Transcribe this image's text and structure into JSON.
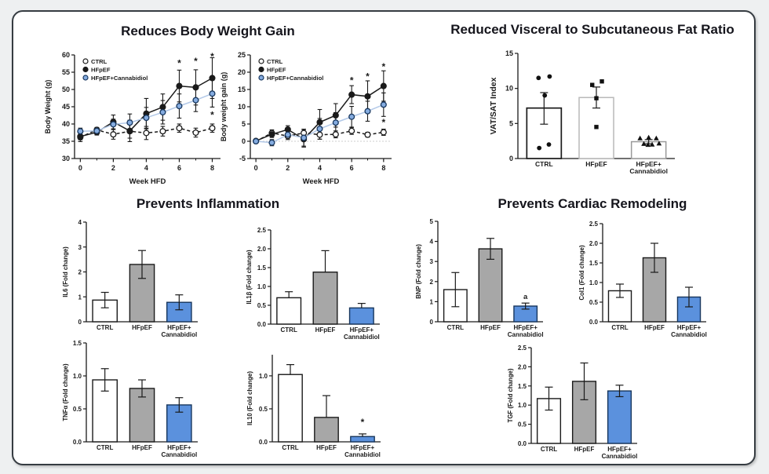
{
  "palette": {
    "background": "#eef0f1",
    "card_border": "#363c42",
    "axis": "#1a1a1a",
    "gray_bar": "#a7a7a7",
    "blue_bar": "#5b91dd",
    "blue_line": "#b3c9e8",
    "blue_marker": "#85ace0",
    "blue_edge": "#17365d"
  },
  "sections": {
    "top_left_title": "Reduces Body Weight Gain",
    "top_right_title": "Reduced Visceral to Subcutaneous Fat Ratio",
    "bottom_left_title": "Prevents Inflammation",
    "bottom_right_title": "Prevents Cardiac Remodeling"
  },
  "chart_data": [
    {
      "id": "body_weight",
      "type": "line",
      "show_legend": true,
      "xlabel": "Week HFD",
      "ylabel": "Body Weight (g)",
      "xlim": [
        -0.35,
        8.5
      ],
      "ylim": [
        30,
        60
      ],
      "ydec": 0,
      "yticks": [
        30,
        35,
        40,
        45,
        50,
        55,
        60
      ],
      "xticks": [
        0,
        2,
        4,
        6,
        8
      ],
      "xminor": [
        1,
        3,
        5,
        7
      ],
      "x": [
        0,
        1,
        2,
        3,
        4,
        5,
        6,
        7,
        8
      ],
      "series": [
        {
          "name": "CTRL",
          "line_style": "dashed",
          "line_color": "#1a1a1a",
          "marker_fill": "#ffffff",
          "marker_edge": "#1a1a1a",
          "values": [
            36.2,
            38.3,
            37.0,
            37.9,
            37.4,
            37.9,
            38.8,
            37.5,
            38.8
          ],
          "err": [
            1.3,
            0.7,
            1.4,
            2.0,
            1.9,
            1.4,
            1.2,
            1.3,
            1.2
          ]
        },
        {
          "name": "HFpEF",
          "line_style": "solid",
          "line_color": "#1a1a1a",
          "marker_fill": "#1a1a1a",
          "marker_edge": "#1a1a1a",
          "values": [
            36.4,
            37.6,
            40.6,
            38.0,
            43.0,
            44.9,
            51.0,
            50.6,
            53.3
          ],
          "err": [
            1.0,
            0.8,
            2.0,
            3.1,
            4.4,
            3.8,
            4.6,
            5.1,
            5.9
          ]
        },
        {
          "name": "HFpEF+Cannabidiol",
          "line_style": "solid",
          "line_color": "#b3c9e8",
          "marker_fill": "#85ace0",
          "marker_edge": "#17365d",
          "values": [
            37.9,
            38.0,
            39.9,
            40.4,
            41.8,
            43.4,
            45.2,
            46.9,
            48.8
          ],
          "err": [
            0.9,
            0.9,
            1.5,
            2.5,
            3.0,
            3.4,
            3.5,
            3.3,
            3.9
          ]
        }
      ],
      "annotations": [
        {
          "x": 6,
          "y": 57.6,
          "t": "*"
        },
        {
          "x": 7,
          "y": 58.2,
          "t": "*"
        },
        {
          "x": 8,
          "y": 59.6,
          "t": "*"
        },
        {
          "x": 8,
          "y": 42.6,
          "t": "*"
        }
      ]
    },
    {
      "id": "body_weight_gain",
      "type": "line",
      "show_legend": true,
      "refline": 0,
      "xlabel": "Week HFD",
      "ylabel": "Body weight gain (g)",
      "xlim": [
        -0.35,
        8.5
      ],
      "ylim": [
        -5,
        25
      ],
      "ydec": 0,
      "yticks": [
        -5,
        0,
        5,
        10,
        15,
        20,
        25
      ],
      "xticks": [
        0,
        2,
        4,
        6,
        8
      ],
      "xminor": [
        1,
        3,
        5,
        7
      ],
      "x": [
        0,
        1,
        2,
        3,
        4,
        5,
        6,
        7,
        8
      ],
      "series": [
        {
          "name": "CTRL",
          "line_style": "dashed",
          "line_color": "#1a1a1a",
          "marker_fill": "#ffffff",
          "marker_edge": "#1a1a1a",
          "values": [
            0,
            2.4,
            1.5,
            2.4,
            1.9,
            2.0,
            3.0,
            1.9,
            2.6
          ],
          "err": [
            0.3,
            0.9,
            1.0,
            1.1,
            1.3,
            1.0,
            1.0,
            0.7,
            0.9
          ]
        },
        {
          "name": "HFpEF",
          "line_style": "solid",
          "line_color": "#1a1a1a",
          "marker_fill": "#1a1a1a",
          "marker_edge": "#1a1a1a",
          "values": [
            0.1,
            2.0,
            3.4,
            0.6,
            5.5,
            7.5,
            13.5,
            13.0,
            16.0
          ],
          "err": [
            0.3,
            0.9,
            1.1,
            2.3,
            3.7,
            3.4,
            2.6,
            4.5,
            4.4
          ]
        },
        {
          "name": "HFpEF+Cannabidiol",
          "line_style": "solid",
          "line_color": "#b3c9e8",
          "marker_fill": "#85ace0",
          "marker_edge": "#17365d",
          "values": [
            0,
            -0.4,
            1.9,
            1.0,
            3.6,
            5.4,
            7.1,
            8.7,
            10.6
          ],
          "err": [
            0.2,
            0.9,
            1.0,
            2.4,
            3.0,
            2.9,
            3.0,
            2.9,
            3.4
          ]
        }
      ],
      "annotations": [
        {
          "x": 6,
          "y": 17.6,
          "t": "*"
        },
        {
          "x": 7,
          "y": 18.8,
          "t": "*"
        },
        {
          "x": 8,
          "y": 21.6,
          "t": "*"
        },
        {
          "x": 8,
          "y": 5.4,
          "t": "*"
        }
      ]
    },
    {
      "id": "vat_sat",
      "type": "bar",
      "ylabel": "VAT/SAT Index",
      "ylim": [
        0,
        15
      ],
      "ydec": 0,
      "yticks": [
        0,
        5,
        10,
        15
      ],
      "categories": [
        "CTRL",
        "HFpEF",
        "HFpEF+\nCannabidiol"
      ],
      "values": [
        7.2,
        8.7,
        2.4
      ],
      "err_up": [
        2.2,
        1.5,
        0.3
      ],
      "err_down": [
        2.3,
        1.5,
        0.3
      ],
      "bar_fills": [
        "#ffffff",
        "#ffffff",
        "#ffffff"
      ],
      "bar_edges": [
        "#1a1a1a",
        "#b9b9b9",
        "#9a9a9a"
      ],
      "bar_edge_w": [
        1.7,
        1.5,
        1.5
      ],
      "scatter": [
        {
          "shape": "circle",
          "points": [
            [
              11.5,
              -0.16
            ],
            [
              11.7,
              0.16
            ],
            [
              9.0,
              0.02
            ],
            [
              2.0,
              0.14
            ],
            [
              1.5,
              -0.14
            ]
          ]
        },
        {
          "shape": "square",
          "points": [
            [
              10.5,
              -0.12
            ],
            [
              11.0,
              0.16
            ],
            [
              8.6,
              0.0
            ],
            [
              4.5,
              0.0
            ]
          ]
        },
        {
          "shape": "triangle",
          "points": [
            [
              2.9,
              -0.25
            ],
            [
              3.0,
              0.0
            ],
            [
              2.9,
              0.22
            ],
            [
              2.1,
              -0.14
            ],
            [
              2.0,
              0.1
            ],
            [
              2.15,
              0.3
            ],
            [
              1.95,
              -0.02
            ]
          ]
        }
      ],
      "annotations": []
    },
    {
      "id": "il6",
      "type": "bar",
      "ylabel": "IL6 (Fold change)",
      "ylim": [
        0,
        4
      ],
      "ydec": 0,
      "yticks": [
        0,
        1,
        2,
        3,
        4
      ],
      "categories": [
        "CTRL",
        "HFpEF",
        "HFpEF+\nCannabidiol"
      ],
      "values": [
        0.87,
        2.3,
        0.78
      ],
      "err_up": [
        0.31,
        0.56,
        0.3
      ],
      "err_down": [
        0.31,
        0.56,
        0.3
      ],
      "bar_fills": [
        "#ffffff",
        "#a7a7a7",
        "#5b91dd"
      ],
      "bar_edges": [
        "#1a1a1a",
        "#1a1a1a",
        "#17365d"
      ],
      "annotations": []
    },
    {
      "id": "il1b",
      "type": "bar",
      "ylabel": "IL1β (Fold change)",
      "ylim": [
        0,
        2.5
      ],
      "ydec": 1,
      "yticks": [
        0,
        0.5,
        1.0,
        1.5,
        2.0,
        2.5
      ],
      "categories": [
        "CTRL",
        "HFpEF",
        "HFpEF+\nCannabidiol"
      ],
      "values": [
        0.7,
        1.38,
        0.43
      ],
      "err_up": [
        0.16,
        0.57,
        0.12
      ],
      "bar_fills": [
        "#ffffff",
        "#a7a7a7",
        "#5b91dd"
      ],
      "bar_edges": [
        "#1a1a1a",
        "#1a1a1a",
        "#17365d"
      ],
      "annotations": []
    },
    {
      "id": "tnfa",
      "type": "bar",
      "ylabel": "TNFα (Fold change)",
      "ylim": [
        0,
        1.5
      ],
      "ydec": 1,
      "yticks": [
        0,
        0.5,
        1.0,
        1.5
      ],
      "categories": [
        "CTRL",
        "HFpEF",
        "HFpEF+\nCannabidiol"
      ],
      "values": [
        0.94,
        0.81,
        0.56
      ],
      "err_up": [
        0.17,
        0.13,
        0.11
      ],
      "err_down": [
        0.17,
        0.13,
        0.11
      ],
      "bar_fills": [
        "#ffffff",
        "#a7a7a7",
        "#5b91dd"
      ],
      "bar_edges": [
        "#1a1a1a",
        "#1a1a1a",
        "#17365d"
      ],
      "annotations": []
    },
    {
      "id": "il10",
      "type": "bar",
      "ylabel": "IL10 (Fold change)",
      "ylim": [
        0,
        1.32
      ],
      "ydec": 1,
      "yticks": [
        0,
        0.5,
        1.0
      ],
      "categories": [
        "CTRL",
        "HFpEF",
        "HFpEF+\nCannabidiol"
      ],
      "values": [
        1.02,
        0.37,
        0.08
      ],
      "err_up": [
        0.15,
        0.33,
        0.04
      ],
      "bar_fills": [
        "#ffffff",
        "#a7a7a7",
        "#5b91dd"
      ],
      "bar_edges": [
        "#1a1a1a",
        "#1a1a1a",
        "#17365d"
      ],
      "annotations": [
        {
          "cat": 2,
          "y": 0.3,
          "t": "*"
        }
      ]
    },
    {
      "id": "bnp",
      "type": "bar",
      "ylabel": "BNP (Fold change)",
      "ylim": [
        0,
        5
      ],
      "ydec": 0,
      "yticks": [
        0,
        1,
        2,
        3,
        4,
        5
      ],
      "categories": [
        "CTRL",
        "HFpEF",
        "HFpEF+\nCannabidiol"
      ],
      "values": [
        1.6,
        3.63,
        0.78
      ],
      "err_up": [
        0.85,
        0.52,
        0.15
      ],
      "err_down": [
        0.85,
        0.52,
        0.15
      ],
      "bar_fills": [
        "#ffffff",
        "#a7a7a7",
        "#5b91dd"
      ],
      "bar_edges": [
        "#1a1a1a",
        "#1a1a1a",
        "#17365d"
      ],
      "annotations": [
        {
          "cat": 2,
          "y": 1.25,
          "t": "a"
        }
      ]
    },
    {
      "id": "col1",
      "type": "bar",
      "ylabel": "Col1 (Fold change)",
      "ylim": [
        0,
        2.5
      ],
      "ydec": 1,
      "yticks": [
        0,
        0.5,
        1.0,
        1.5,
        2.0,
        2.5
      ],
      "categories": [
        "CTRL",
        "HFpEF",
        "HFpEF+\nCannabidiol"
      ],
      "values": [
        0.79,
        1.63,
        0.63
      ],
      "err_up": [
        0.17,
        0.37,
        0.25
      ],
      "err_down": [
        0.17,
        0.37,
        0.25
      ],
      "bar_fills": [
        "#ffffff",
        "#a7a7a7",
        "#5b91dd"
      ],
      "bar_edges": [
        "#1a1a1a",
        "#1a1a1a",
        "#17365d"
      ],
      "annotations": []
    },
    {
      "id": "tgf",
      "type": "bar",
      "ylabel": "TGF  (Fold change)",
      "ylim": [
        0,
        2.5
      ],
      "ydec": 1,
      "yticks": [
        0,
        0.5,
        1.0,
        1.5,
        2.0,
        2.5
      ],
      "categories": [
        "CTRL",
        "HFpEF",
        "HFpEF+\nCannabidiol"
      ],
      "values": [
        1.17,
        1.62,
        1.37
      ],
      "err_up": [
        0.3,
        0.48,
        0.15
      ],
      "err_down": [
        0.3,
        0.48,
        0.15
      ],
      "bar_fills": [
        "#ffffff",
        "#a7a7a7",
        "#5b91dd"
      ],
      "bar_edges": [
        "#1a1a1a",
        "#1a1a1a",
        "#17365d"
      ],
      "annotations": []
    }
  ]
}
